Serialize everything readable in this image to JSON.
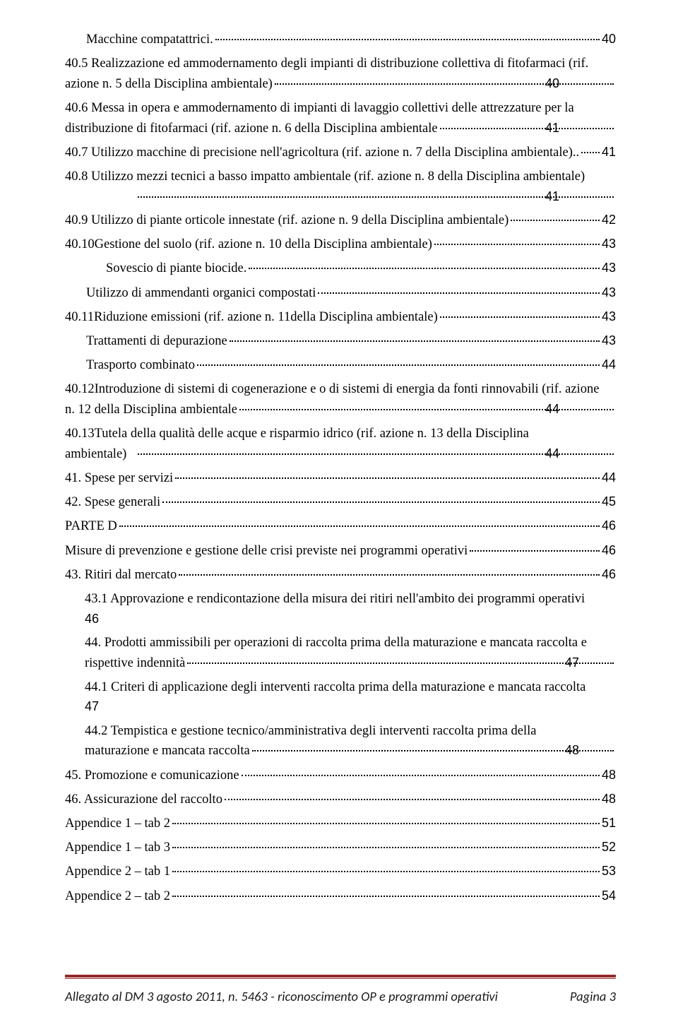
{
  "toc": [
    {
      "text": "Macchine compatattrici.",
      "page": "40",
      "cls": "indent-1",
      "mode": "single"
    },
    {
      "wrap": "40.5 Realizzazione ed ammodernamento degli impianti di distribuzione collettiva di fitofarmaci (rif.",
      "last": "azione n. 5 della Disciplina ambientale)",
      "page": "40",
      "cls": "indent-hang2",
      "mode": "wrap"
    },
    {
      "wrap": "40.6 Messa in opera e ammodernamento di impianti di lavaggio collettivi delle attrezzature per la",
      "last": "distribuzione di fitofarmaci (rif. azione n. 6 della Disciplina ambientale",
      "page": "41",
      "cls": "indent-hang2",
      "mode": "wrap"
    },
    {
      "text": "40.7 Utilizzo macchine di precisione nell'agricoltura (rif. azione n. 7 della Disciplina ambientale)..",
      "page": "41",
      "cls": "",
      "mode": "single"
    },
    {
      "wrap": "40.8 Utilizzo mezzi tecnici a basso impatto ambientale (rif. azione n. 8 della Disciplina ambientale)",
      "last": "",
      "page": "41",
      "cls": "indent-hang2",
      "mode": "wrap"
    },
    {
      "text": "40.9 Utilizzo di piante orticole innestate (rif. azione n. 9 della Disciplina ambientale)",
      "page": "42",
      "cls": "",
      "mode": "single"
    },
    {
      "text": "40.10Gestione del suolo  (rif. azione n. 10 della Disciplina ambientale)",
      "page": "43",
      "cls": "",
      "mode": "single"
    },
    {
      "text": "Sovescio di piante biocide.",
      "page": "43",
      "cls": "indent-2",
      "mode": "single"
    },
    {
      "text": "Utilizzo di ammendanti organici compostati",
      "page": "43",
      "cls": "indent-1",
      "mode": "single"
    },
    {
      "text": "40.11Riduzione emissioni (rif. azione n. 11della Disciplina ambientale)",
      "page": "43",
      "cls": "",
      "mode": "single"
    },
    {
      "text": "Trattamenti di depurazione",
      "page": "43",
      "cls": "indent-1",
      "mode": "single"
    },
    {
      "text": "Trasporto combinato",
      "page": "44",
      "cls": "indent-1",
      "mode": "single"
    },
    {
      "wrap": "40.12Introduzione di sistemi di cogenerazione e o di sistemi di energia da fonti rinnovabili (rif. azione",
      "last": "n. 12 della Disciplina ambientale",
      "page": "44",
      "cls": "indent-hang2",
      "mode": "wrap"
    },
    {
      "wrap": "40.13Tutela  della  qualità  delle  acque    e  risparmio  idrico    (rif.  azione  n.  13  della  Disciplina",
      "last": "ambientale)",
      "page": "44",
      "cls": "indent-hang2",
      "mode": "wrap"
    },
    {
      "text": "41.    Spese  per  servizi",
      "page": "44",
      "cls": "",
      "mode": "single"
    },
    {
      "text": "42.    Spese  generali",
      "page": "45",
      "cls": "",
      "mode": "single"
    },
    {
      "text": "PARTE D",
      "page": "46",
      "cls": "",
      "mode": "single",
      "noindent": true
    },
    {
      "text": "Misure di prevenzione e gestione delle crisi previste nei programmi operativi",
      "page": "46",
      "cls": "",
      "mode": "single",
      "noindent": true
    },
    {
      "text": "43.    Ritiri dal mercato",
      "page": "46",
      "cls": "",
      "mode": "single"
    },
    {
      "wrap": "43.1  Approvazione  e rendicontazione della misura dei ritiri nell'ambito dei programmi operativi",
      "last": "46",
      "page": "",
      "cls": "indent-hang3",
      "mode": "wraptxt",
      "lastArial": true
    },
    {
      "wrap": "44.    Prodotti ammissibili per operazioni di raccolta prima della maturazione e mancata raccolta e",
      "last": "rispettive indennità",
      "page": "47",
      "cls": "indent-hang3",
      "mode": "wrap"
    },
    {
      "wrap": "44.1  Criteri di applicazione degli interventi  raccolta prima della maturazione e mancata raccolta",
      "last": "47",
      "page": "",
      "cls": "indent-hang3",
      "mode": "wraptxt",
      "lastArial": true
    },
    {
      "wrap": "44.2   Tempistica   e   gestione   tecnico/amministrativa   degli   interventi     raccolta   prima   della",
      "last": "maturazione e mancata raccolta",
      "page": "48",
      "cls": "indent-hang3",
      "mode": "wrap"
    },
    {
      "text": "45.    Promozione e comunicazione",
      "page": "48",
      "cls": "",
      "mode": "single"
    },
    {
      "text": "46.    Assicurazione del raccolto",
      "page": "48",
      "cls": "",
      "mode": "single"
    },
    {
      "text": "Appendice 1 – tab 2",
      "page": "51",
      "cls": "",
      "mode": "single",
      "noindent": true
    },
    {
      "text": "Appendice 1 – tab 3",
      "page": "52",
      "cls": "",
      "mode": "single",
      "noindent": true
    },
    {
      "text": "Appendice 2 – tab 1",
      "page": "53",
      "cls": "",
      "mode": "single",
      "noindent": true
    },
    {
      "text": "Appendice 2 – tab 2",
      "page": "54",
      "cls": "",
      "mode": "single",
      "noindent": true
    }
  ],
  "footer": {
    "left": "Allegato al DM  3 agosto 2011, n. 5463 - riconoscimento  OP e programmi operativi",
    "right_label": "Pagina ",
    "right_num": "3"
  }
}
